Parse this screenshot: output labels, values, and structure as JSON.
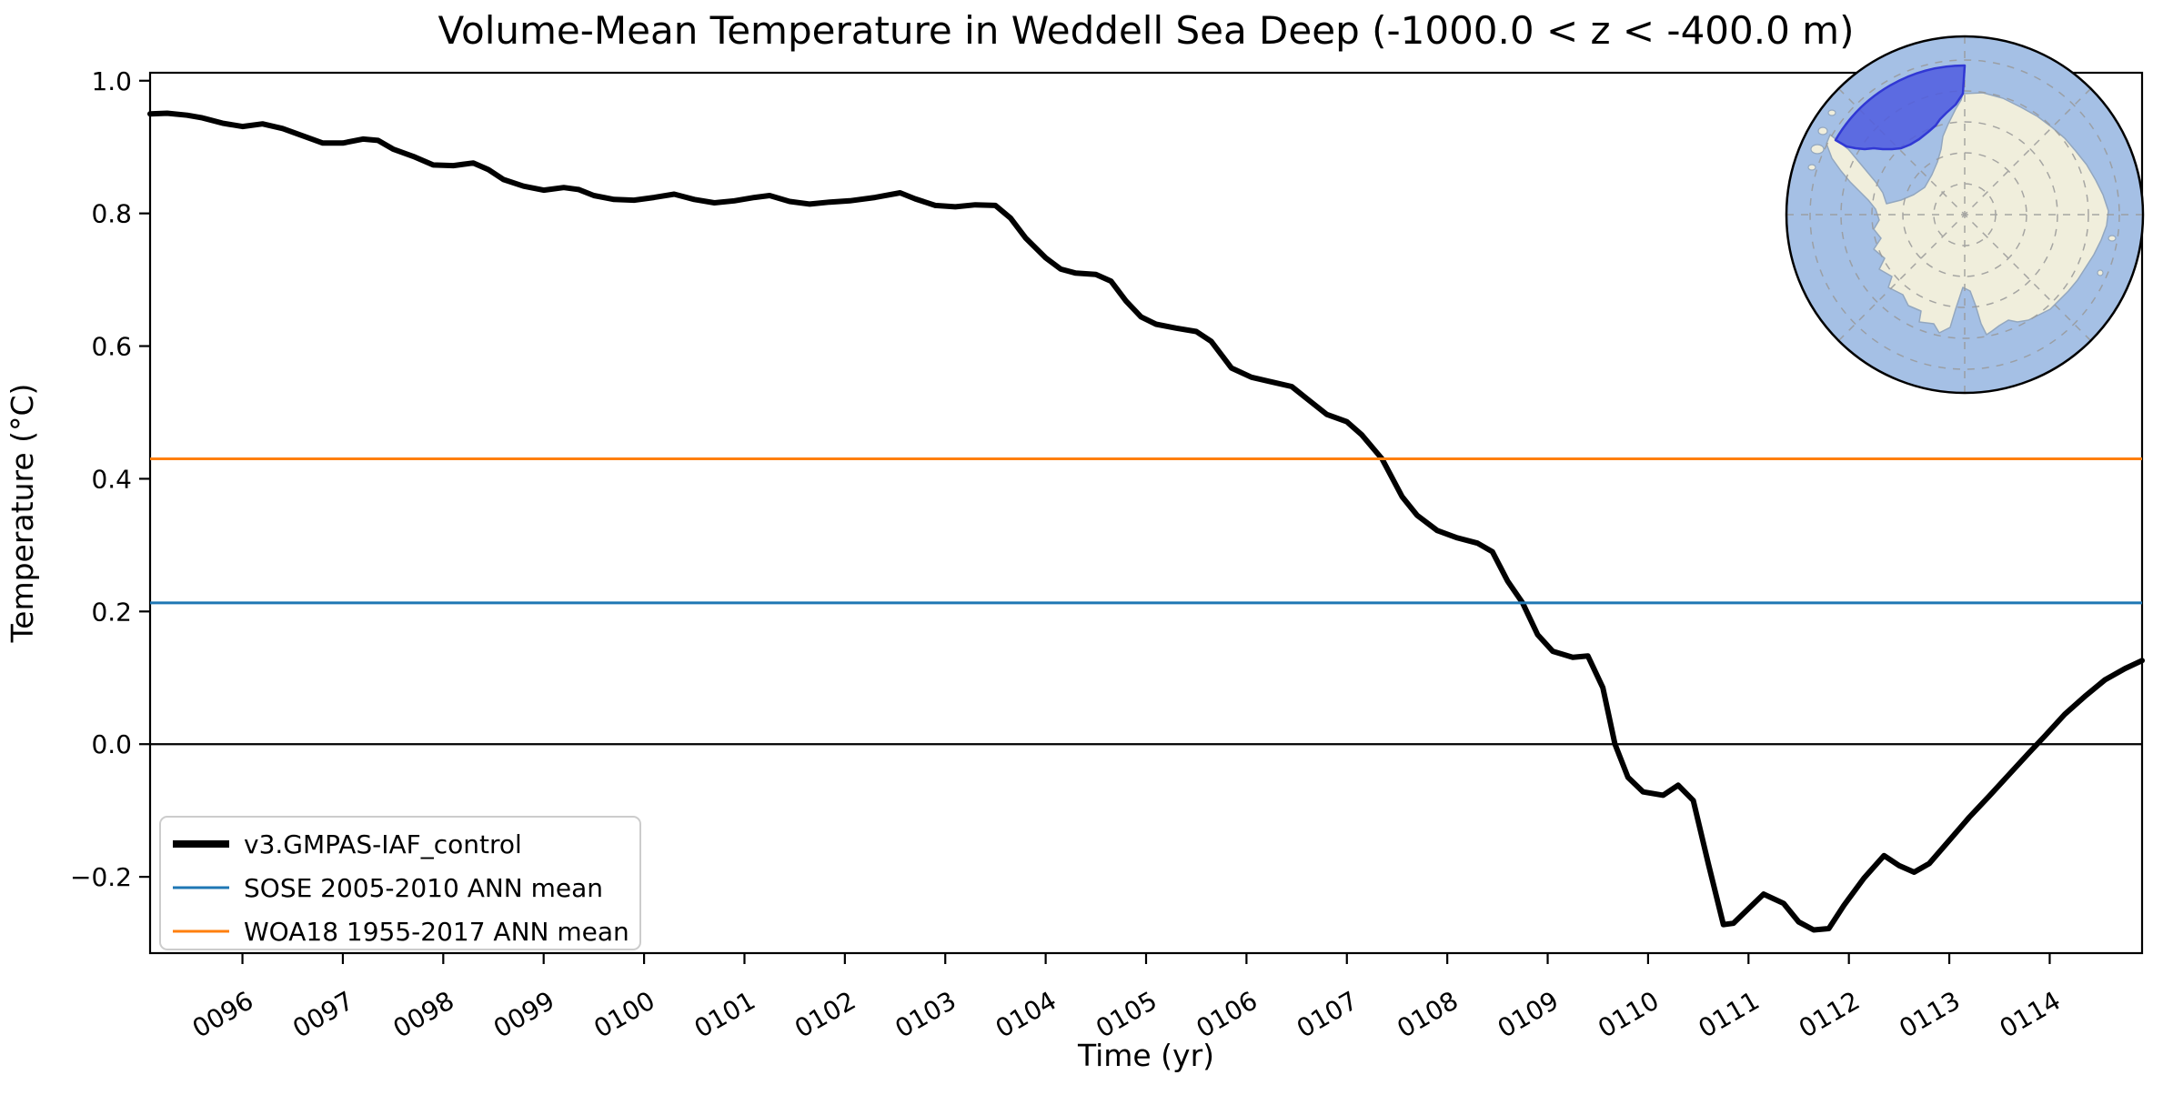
{
  "chart_data": {
    "type": "line",
    "title": "Volume-Mean Temperature in Weddell Sea Deep (-1000.0 < z < -400.0 m)",
    "xlabel": "Time (yr)",
    "ylabel": "Temperature (°C)",
    "xlim": [
      95.08,
      114.92
    ],
    "ylim": [
      -0.315,
      1.012
    ],
    "grid": false,
    "legend_position": "lower left",
    "x_ticks": [
      96,
      97,
      98,
      99,
      100,
      101,
      102,
      103,
      104,
      105,
      106,
      107,
      108,
      109,
      110,
      111,
      112,
      113,
      114
    ],
    "x_tick_labels": [
      "0096",
      "0097",
      "0098",
      "0099",
      "0100",
      "0101",
      "0102",
      "0103",
      "0104",
      "0105",
      "0106",
      "0107",
      "0108",
      "0109",
      "0110",
      "0111",
      "0112",
      "0113",
      "0114"
    ],
    "x_tick_rotation_deg": 30,
    "y_ticks": [
      -0.2,
      0.0,
      0.2,
      0.4,
      0.6,
      0.8,
      1.0
    ],
    "y_tick_labels": [
      "−0.2",
      "0.0",
      "0.2",
      "0.4",
      "0.6",
      "0.8",
      "1.0"
    ],
    "zero_line": {
      "value": 0.0,
      "color": "#000000"
    },
    "series": [
      {
        "name": "v3.GMPAS-IAF_control",
        "type": "line",
        "color": "#000000",
        "linewidth": 6,
        "points": [
          [
            95.08,
            0.95
          ],
          [
            95.25,
            0.951
          ],
          [
            95.45,
            0.948
          ],
          [
            95.6,
            0.944
          ],
          [
            95.8,
            0.936
          ],
          [
            96.0,
            0.931
          ],
          [
            96.2,
            0.935
          ],
          [
            96.4,
            0.928
          ],
          [
            96.6,
            0.917
          ],
          [
            96.8,
            0.906
          ],
          [
            97.0,
            0.906
          ],
          [
            97.2,
            0.912
          ],
          [
            97.35,
            0.91
          ],
          [
            97.5,
            0.897
          ],
          [
            97.7,
            0.886
          ],
          [
            97.9,
            0.873
          ],
          [
            98.1,
            0.872
          ],
          [
            98.3,
            0.876
          ],
          [
            98.45,
            0.866
          ],
          [
            98.6,
            0.851
          ],
          [
            98.8,
            0.841
          ],
          [
            99.0,
            0.835
          ],
          [
            99.2,
            0.839
          ],
          [
            99.35,
            0.836
          ],
          [
            99.5,
            0.827
          ],
          [
            99.7,
            0.821
          ],
          [
            99.9,
            0.82
          ],
          [
            100.1,
            0.824
          ],
          [
            100.3,
            0.829
          ],
          [
            100.5,
            0.821
          ],
          [
            100.7,
            0.816
          ],
          [
            100.9,
            0.819
          ],
          [
            101.1,
            0.824
          ],
          [
            101.25,
            0.827
          ],
          [
            101.45,
            0.818
          ],
          [
            101.65,
            0.814
          ],
          [
            101.85,
            0.817
          ],
          [
            102.05,
            0.819
          ],
          [
            102.3,
            0.824
          ],
          [
            102.55,
            0.831
          ],
          [
            102.7,
            0.822
          ],
          [
            102.9,
            0.812
          ],
          [
            103.1,
            0.81
          ],
          [
            103.3,
            0.813
          ],
          [
            103.5,
            0.812
          ],
          [
            103.65,
            0.793
          ],
          [
            103.8,
            0.763
          ],
          [
            104.0,
            0.733
          ],
          [
            104.15,
            0.716
          ],
          [
            104.3,
            0.71
          ],
          [
            104.5,
            0.708
          ],
          [
            104.65,
            0.698
          ],
          [
            104.8,
            0.668
          ],
          [
            104.95,
            0.644
          ],
          [
            105.1,
            0.633
          ],
          [
            105.3,
            0.627
          ],
          [
            105.5,
            0.622
          ],
          [
            105.65,
            0.607
          ],
          [
            105.85,
            0.567
          ],
          [
            106.05,
            0.553
          ],
          [
            106.25,
            0.546
          ],
          [
            106.45,
            0.539
          ],
          [
            106.6,
            0.521
          ],
          [
            106.8,
            0.497
          ],
          [
            107.0,
            0.486
          ],
          [
            107.15,
            0.466
          ],
          [
            107.35,
            0.43
          ],
          [
            107.55,
            0.373
          ],
          [
            107.7,
            0.345
          ],
          [
            107.9,
            0.322
          ],
          [
            108.1,
            0.311
          ],
          [
            108.3,
            0.303
          ],
          [
            108.45,
            0.29
          ],
          [
            108.6,
            0.246
          ],
          [
            108.75,
            0.213
          ],
          [
            108.9,
            0.165
          ],
          [
            109.05,
            0.14
          ],
          [
            109.25,
            0.131
          ],
          [
            109.4,
            0.133
          ],
          [
            109.55,
            0.085
          ],
          [
            109.67,
            0.0
          ],
          [
            109.8,
            -0.05
          ],
          [
            109.95,
            -0.072
          ],
          [
            110.15,
            -0.077
          ],
          [
            110.3,
            -0.062
          ],
          [
            110.45,
            -0.085
          ],
          [
            110.6,
            -0.18
          ],
          [
            110.75,
            -0.272
          ],
          [
            110.85,
            -0.27
          ],
          [
            111.0,
            -0.248
          ],
          [
            111.15,
            -0.226
          ],
          [
            111.35,
            -0.24
          ],
          [
            111.5,
            -0.268
          ],
          [
            111.65,
            -0.28
          ],
          [
            111.8,
            -0.278
          ],
          [
            111.95,
            -0.243
          ],
          [
            112.15,
            -0.202
          ],
          [
            112.35,
            -0.168
          ],
          [
            112.5,
            -0.183
          ],
          [
            112.65,
            -0.193
          ],
          [
            112.8,
            -0.18
          ],
          [
            113.0,
            -0.145
          ],
          [
            113.2,
            -0.11
          ],
          [
            113.4,
            -0.078
          ],
          [
            113.6,
            -0.045
          ],
          [
            113.8,
            -0.012
          ],
          [
            113.95,
            0.012
          ],
          [
            114.15,
            0.045
          ],
          [
            114.35,
            0.072
          ],
          [
            114.55,
            0.097
          ],
          [
            114.75,
            0.114
          ],
          [
            114.92,
            0.126
          ]
        ]
      },
      {
        "name": "SOSE 2005-2010 ANN mean",
        "type": "hline",
        "color": "#1f77b4",
        "linewidth": 3,
        "value": 0.213
      },
      {
        "name": "WOA18 1955-2017 ANN mean",
        "type": "hline",
        "color": "#ff7f0e",
        "linewidth": 3,
        "value": 0.43
      }
    ]
  },
  "inset_map": {
    "description": "south-polar-stereographic-inset",
    "highlighted_region": "Weddell Sea",
    "colors": {
      "ocean": "#a5c0e5",
      "land": "#f0eedc",
      "coast": "#93a7bf",
      "region_fill": "#4f5ce1",
      "region_edge": "#3138d4",
      "graticule": "#999999",
      "boundary": "#000000"
    }
  }
}
